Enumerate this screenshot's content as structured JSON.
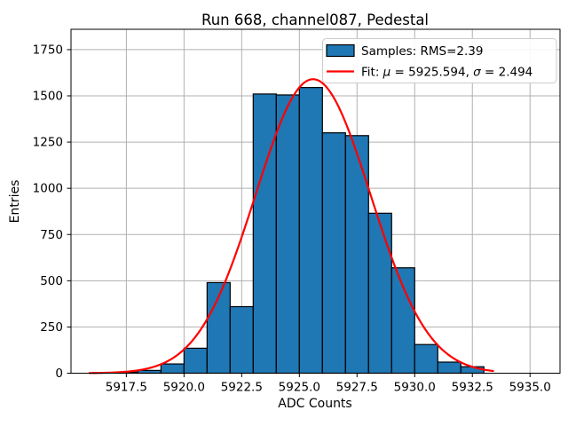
{
  "title": "Run 668, channel087, Pedestal",
  "axes": {
    "xlabel": "ADC Counts",
    "ylabel": "Entries"
  },
  "legend": {
    "samples_label": "Samples: RMS=2.39",
    "fit_prefix": "Fit: ",
    "fit_mu_symbol": "μ",
    "fit_mu_text": " = 5925.594, ",
    "fit_sigma_symbol": "σ",
    "fit_sigma_text": " = 2.494"
  },
  "colors": {
    "bar_fill": "#1f77b4",
    "bar_edge": "#000000",
    "fit_line": "#ff0000",
    "grid": "#b0b0b0",
    "spine": "#000000",
    "legend_border": "#cccccc",
    "background": "#ffffff"
  },
  "chart_data": {
    "type": "bar",
    "subtype": "histogram",
    "title": "Run 668, channel087, Pedestal",
    "xlabel": "ADC Counts",
    "ylabel": "Entries",
    "bin_edges": [
      5917,
      5918,
      5919,
      5920,
      5921,
      5922,
      5923,
      5924,
      5925,
      5926,
      5927,
      5928,
      5929,
      5930,
      5931,
      5932,
      5933
    ],
    "counts": [
      6,
      15,
      50,
      135,
      490,
      360,
      1510,
      1505,
      1545,
      1300,
      1285,
      865,
      570,
      155,
      60,
      35
    ],
    "samples_rms": 2.39,
    "fit": {
      "type": "gaussian",
      "mu": 5925.594,
      "sigma": 2.494,
      "amplitude": 1590,
      "x_start": 5915.9,
      "x_end": 5933.4
    },
    "x_ticks": [
      5917.5,
      5920.0,
      5922.5,
      5925.0,
      5927.5,
      5930.0,
      5932.5,
      5935.0
    ],
    "x_tick_labels": [
      "5917.5",
      "5920.0",
      "5922.5",
      "5925.0",
      "5927.5",
      "5930.0",
      "5932.5",
      "5935.0"
    ],
    "y_ticks": [
      0,
      250,
      500,
      750,
      1000,
      1250,
      1500,
      1750
    ],
    "y_tick_labels": [
      "0",
      "250",
      "500",
      "750",
      "1000",
      "1250",
      "1500",
      "1750"
    ],
    "xlim": [
      5915.1,
      5936.3
    ],
    "ylim": [
      0,
      1860
    ],
    "grid": true,
    "legend_position": "upper right"
  }
}
